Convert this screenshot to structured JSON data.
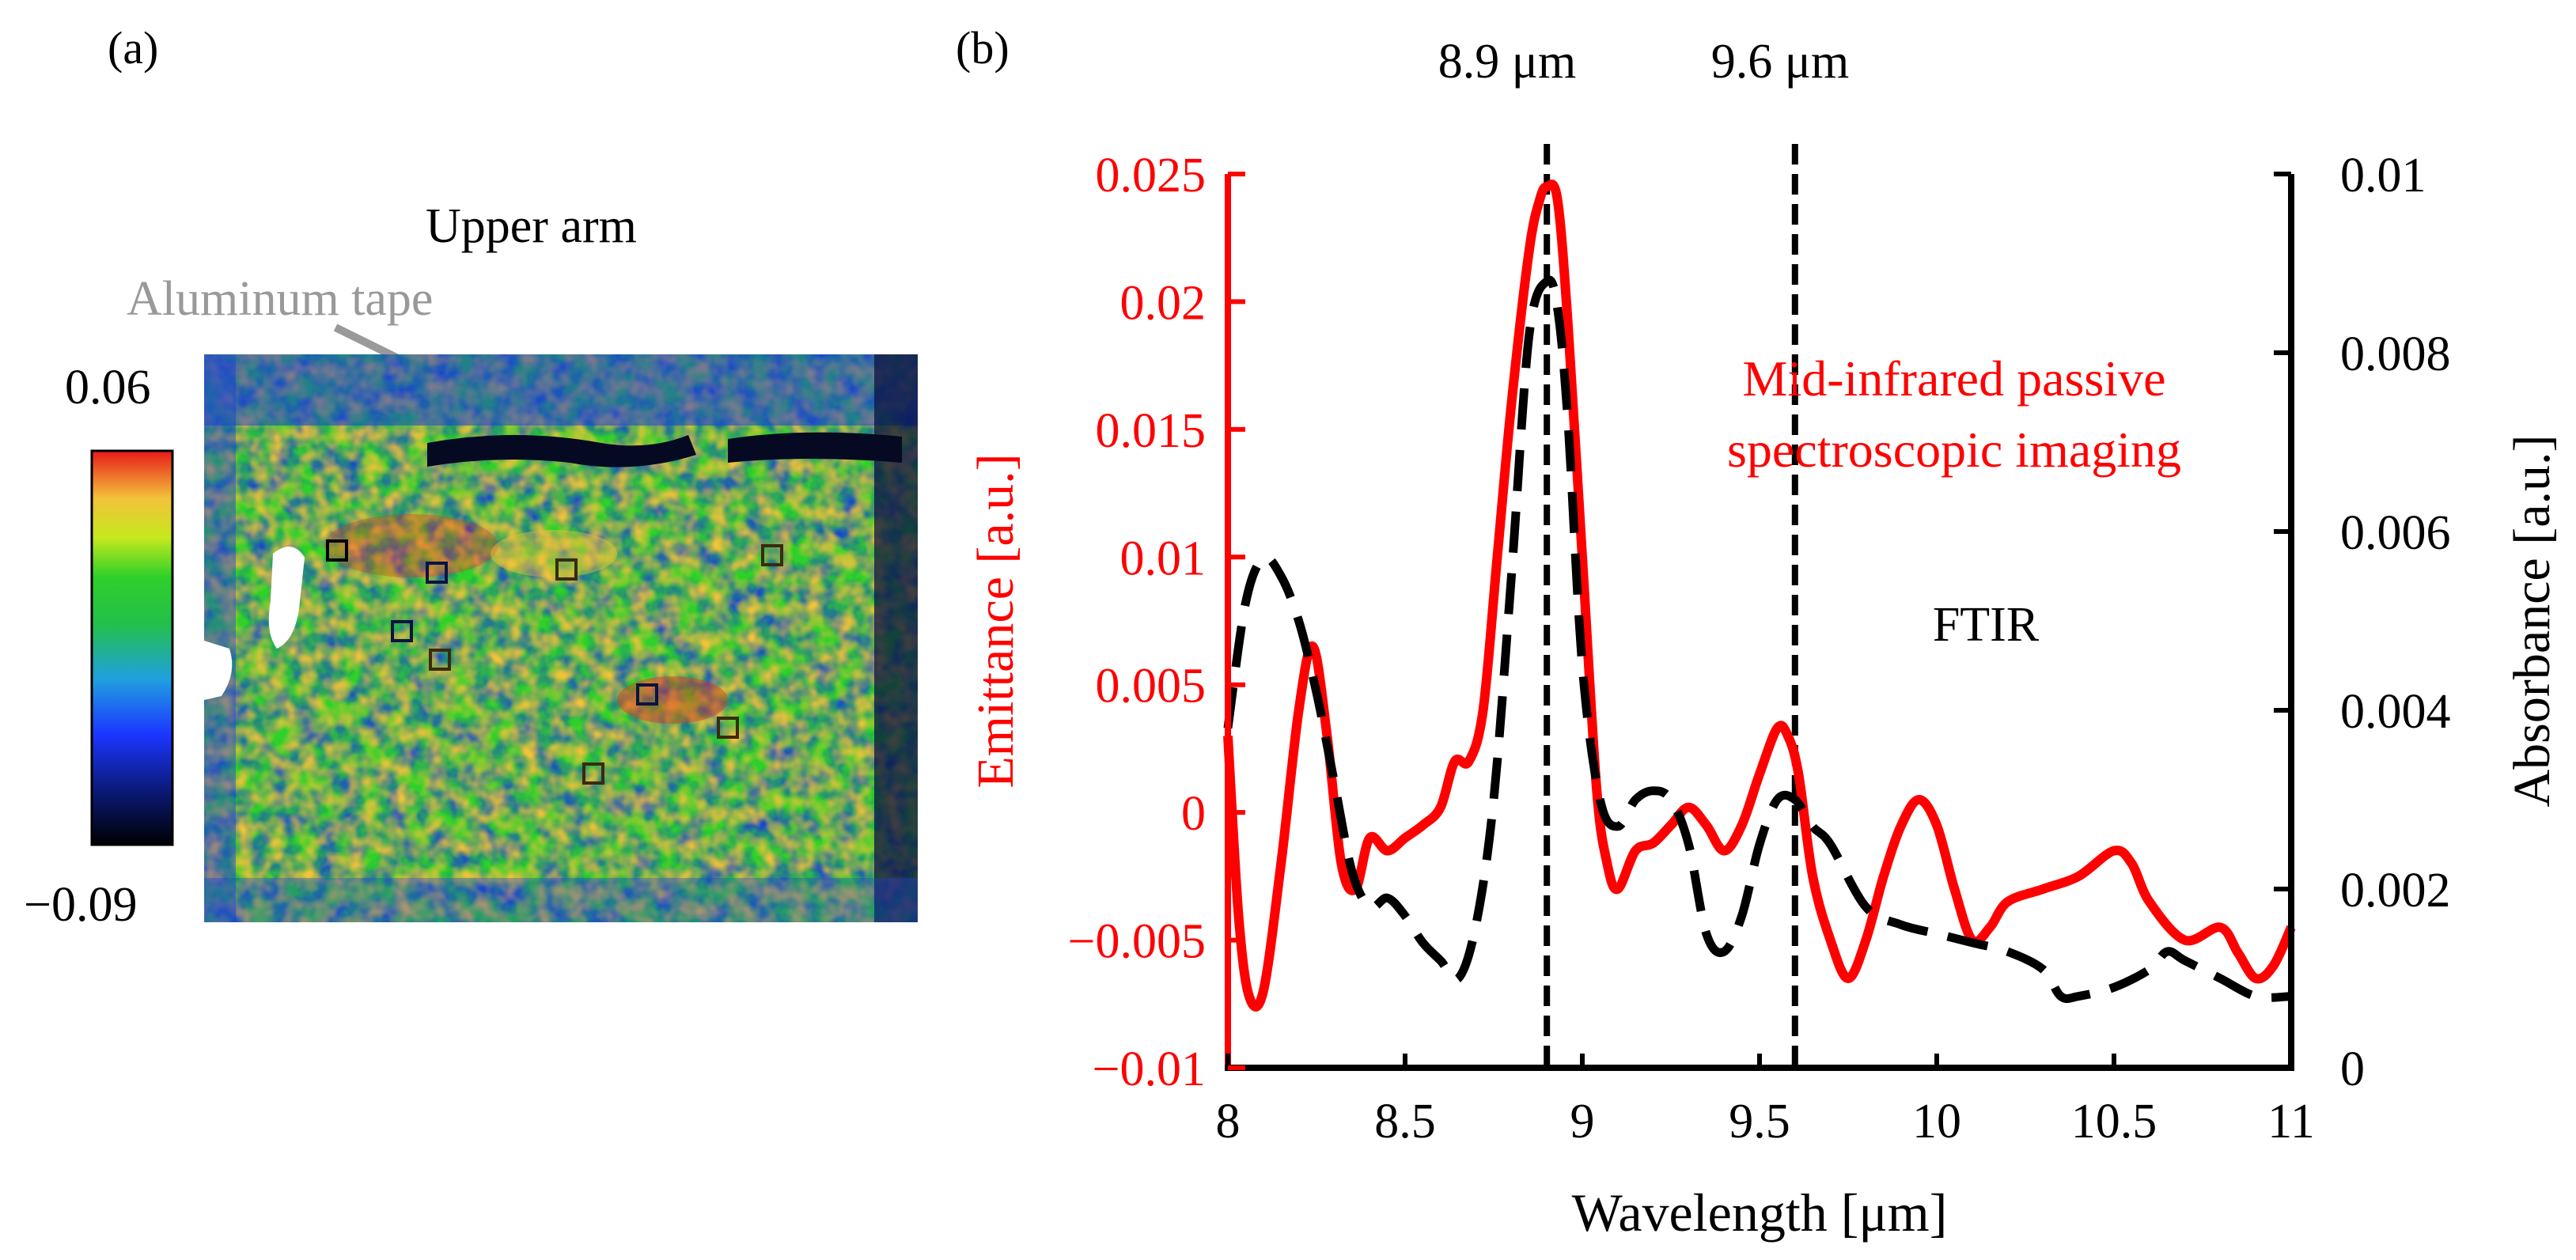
{
  "panel_a": {
    "label": "(a)",
    "region_label": "Upper arm",
    "tape_label": "Aluminum tape",
    "colorbar": {
      "max_label": "0.06",
      "min_label": "−0.09",
      "min": -0.09,
      "max": 0.06
    },
    "colors": {
      "hot": "#e8301c",
      "warm": "#f2c23a",
      "green": "#2ed02a",
      "blue": "#1a3fd6",
      "navy": "#0b1340",
      "tape": "#9a9a9a"
    }
  },
  "panel_b": {
    "label": "(b)",
    "marker_labels": [
      "8.9 μm",
      "9.6 μm"
    ],
    "annotation_red_line1": "Mid-infrared passive",
    "annotation_red_line2": "spectroscopic imaging",
    "annotation_black": "FTIR",
    "colors": {
      "emittance": "#ff0000",
      "absorbance": "#000000"
    }
  },
  "chart_data": {
    "type": "line",
    "xlabel": "Wavelength [μm]",
    "ylabel_left": "Emittance [a.u.]",
    "ylabel_right": "Absorbance [a.u.]",
    "xlim": [
      8,
      11
    ],
    "ylim_left": [
      -0.01,
      0.025
    ],
    "ylim_right": [
      0,
      0.01
    ],
    "xticks": [
      "8",
      "8.5",
      "9",
      "9.5",
      "10",
      "10.5",
      "11"
    ],
    "xtick_values": [
      8,
      8.5,
      9,
      9.5,
      10,
      10.5,
      11
    ],
    "yticks_left": [
      "−0.01",
      "−0.005",
      "0",
      "0.005",
      "0.01",
      "0.015",
      "0.02",
      "0.025"
    ],
    "ytick_values_left": [
      -0.01,
      -0.005,
      0,
      0.005,
      0.01,
      0.015,
      0.02,
      0.025
    ],
    "yticks_right": [
      "0",
      "0.002",
      "0.004",
      "0.006",
      "0.008",
      "0.01"
    ],
    "ytick_values_right": [
      0,
      0.002,
      0.004,
      0.006,
      0.008,
      0.01
    ],
    "vlines": [
      8.9,
      9.6
    ],
    "series": [
      {
        "axis": "left",
        "style": "solid",
        "color": "#ff0000",
        "x": [
          8.0,
          8.03,
          8.06,
          8.1,
          8.15,
          8.2,
          8.24,
          8.28,
          8.32,
          8.36,
          8.4,
          8.45,
          8.5,
          8.55,
          8.6,
          8.64,
          8.68,
          8.72,
          8.76,
          8.8,
          8.85,
          8.88,
          8.9,
          8.93,
          8.96,
          9.0,
          9.04,
          9.07,
          9.1,
          9.15,
          9.2,
          9.25,
          9.3,
          9.35,
          9.4,
          9.45,
          9.5,
          9.55,
          9.58,
          9.61,
          9.65,
          9.7,
          9.75,
          9.8,
          9.85,
          9.9,
          9.95,
          10.0,
          10.05,
          10.1,
          10.15,
          10.2,
          10.3,
          10.4,
          10.5,
          10.55,
          10.6,
          10.7,
          10.8,
          10.85,
          10.9,
          10.95,
          11.0
        ],
        "y": [
          0.003,
          -0.004,
          -0.0072,
          -0.007,
          -0.002,
          0.004,
          0.0065,
          0.003,
          -0.002,
          -0.003,
          -0.001,
          -0.0015,
          -0.001,
          -0.0005,
          0.0002,
          0.002,
          0.002,
          0.004,
          0.01,
          0.016,
          0.022,
          0.024,
          0.0245,
          0.024,
          0.019,
          0.01,
          0.001,
          -0.002,
          -0.003,
          -0.0015,
          -0.0012,
          -0.0005,
          0.0002,
          -0.0005,
          -0.0015,
          -0.0005,
          0.0015,
          0.0033,
          0.003,
          0.0015,
          -0.0025,
          -0.005,
          -0.0065,
          -0.005,
          -0.0025,
          -0.0005,
          0.0005,
          -0.0005,
          -0.003,
          -0.005,
          -0.0045,
          -0.0035,
          -0.003,
          -0.0025,
          -0.0015,
          -0.002,
          -0.0035,
          -0.005,
          -0.0045,
          -0.0055,
          -0.0065,
          -0.006,
          -0.0045
        ]
      },
      {
        "axis": "right",
        "style": "dashed",
        "color": "#000000",
        "x": [
          8.0,
          8.05,
          8.1,
          8.15,
          8.2,
          8.25,
          8.3,
          8.35,
          8.4,
          8.45,
          8.5,
          8.55,
          8.6,
          8.65,
          8.7,
          8.75,
          8.8,
          8.85,
          8.9,
          8.93,
          8.96,
          9.0,
          9.05,
          9.1,
          9.15,
          9.2,
          9.25,
          9.3,
          9.35,
          9.4,
          9.45,
          9.5,
          9.55,
          9.6,
          9.65,
          9.7,
          9.8,
          9.9,
          10.0,
          10.1,
          10.2,
          10.3,
          10.35,
          10.4,
          10.5,
          10.6,
          10.65,
          10.7,
          10.8,
          10.9,
          11.0
        ],
        "y": [
          0.0038,
          0.0052,
          0.0057,
          0.0055,
          0.005,
          0.0042,
          0.0032,
          0.0022,
          0.0018,
          0.0019,
          0.0017,
          0.0014,
          0.0012,
          0.001,
          0.0016,
          0.003,
          0.0055,
          0.0082,
          0.0088,
          0.0085,
          0.0072,
          0.0045,
          0.003,
          0.0027,
          0.003,
          0.0031,
          0.003,
          0.0025,
          0.0015,
          0.0013,
          0.0017,
          0.0025,
          0.003,
          0.003,
          0.0027,
          0.0025,
          0.0018,
          0.0016,
          0.0015,
          0.0014,
          0.0013,
          0.0011,
          0.0008,
          0.0008,
          0.0009,
          0.0011,
          0.0013,
          0.0012,
          0.001,
          0.0008,
          0.0008
        ]
      }
    ]
  }
}
